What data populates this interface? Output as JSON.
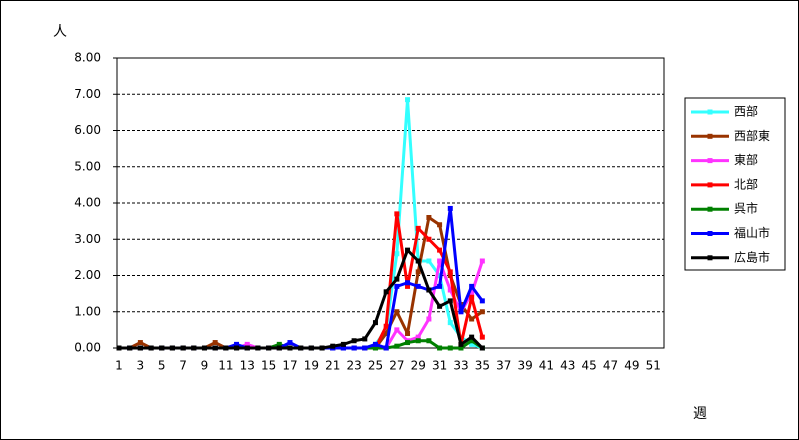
{
  "chart_data": {
    "type": "line",
    "y_unit": "人",
    "x_label": "週",
    "x": [
      1,
      2,
      3,
      4,
      5,
      6,
      7,
      8,
      9,
      10,
      11,
      12,
      13,
      14,
      15,
      16,
      17,
      18,
      19,
      20,
      21,
      22,
      23,
      24,
      25,
      26,
      27,
      28,
      29,
      30,
      31,
      32,
      33,
      34,
      35
    ],
    "xlim": [
      1,
      52
    ],
    "xticks": [
      1,
      3,
      5,
      7,
      9,
      11,
      13,
      15,
      17,
      19,
      21,
      23,
      25,
      27,
      29,
      31,
      33,
      35,
      37,
      39,
      41,
      43,
      45,
      47,
      49,
      51
    ],
    "ylim": [
      0,
      8
    ],
    "yticks": [
      {
        "value": 0,
        "label": "0.00"
      },
      {
        "value": 1,
        "label": "1.00"
      },
      {
        "value": 2,
        "label": "2.00"
      },
      {
        "value": 3,
        "label": "3.00"
      },
      {
        "value": 4,
        "label": "4.00"
      },
      {
        "value": 5,
        "label": "5.00"
      },
      {
        "value": 6,
        "label": "6.00"
      },
      {
        "value": 7,
        "label": "7.00"
      },
      {
        "value": 8,
        "label": "8.00"
      }
    ],
    "grid": true,
    "legend": "right",
    "series": [
      {
        "name": "西部",
        "color": "#33ffff",
        "values": [
          0,
          0,
          0,
          0,
          0,
          0,
          0,
          0,
          0,
          0,
          0,
          0,
          0,
          0,
          0,
          0,
          0,
          0,
          0,
          0,
          0,
          0,
          0,
          0,
          0.1,
          0.5,
          2.6,
          6.85,
          2.4,
          2.4,
          2.0,
          0.7,
          0.3,
          0.1,
          0
        ]
      },
      {
        "name": "西部東",
        "color": "#993300",
        "values": [
          0,
          0,
          0.15,
          0,
          0,
          0,
          0,
          0,
          0,
          0.15,
          0,
          0,
          0,
          0,
          0,
          0,
          0,
          0,
          0,
          0,
          0,
          0,
          0,
          0,
          0,
          0.4,
          1.0,
          0.4,
          2.1,
          3.6,
          3.4,
          2.0,
          1.2,
          0.8,
          1.0
        ]
      },
      {
        "name": "東部",
        "color": "#ff33ff",
        "values": [
          0,
          0,
          0,
          0,
          0,
          0,
          0,
          0,
          0,
          0,
          0,
          0,
          0.1,
          0,
          0,
          0,
          0,
          0,
          0,
          0,
          0,
          0,
          0,
          0,
          0,
          0,
          0.5,
          0.2,
          0.3,
          0.8,
          2.4,
          1.6,
          1.0,
          1.5,
          2.4
        ]
      },
      {
        "name": "北部",
        "color": "#ff0000",
        "values": [
          0,
          0,
          0,
          0,
          0,
          0,
          0,
          0,
          0,
          0,
          0,
          0,
          0,
          0,
          0,
          0,
          0,
          0,
          0,
          0,
          0,
          0,
          0,
          0,
          0,
          0.6,
          3.7,
          1.7,
          3.3,
          3.0,
          2.7,
          2.1,
          0.1,
          1.4,
          0.3
        ]
      },
      {
        "name": "呉市",
        "color": "#008000",
        "values": [
          0,
          0,
          0,
          0,
          0,
          0,
          0,
          0,
          0,
          0,
          0,
          0,
          0,
          0,
          0,
          0.1,
          0,
          0,
          0,
          0,
          0,
          0,
          0,
          0,
          0,
          0,
          0.05,
          0.15,
          0.2,
          0.2,
          0,
          0,
          0,
          0.2,
          0
        ]
      },
      {
        "name": "福山市",
        "color": "#0000ff",
        "values": [
          0,
          0,
          0,
          0,
          0,
          0,
          0,
          0,
          0,
          0,
          0,
          0.1,
          0,
          0,
          0,
          0,
          0.15,
          0,
          0,
          0,
          0,
          0,
          0,
          0,
          0.1,
          0,
          1.7,
          1.8,
          1.7,
          1.6,
          1.7,
          3.85,
          1.0,
          1.7,
          1.3
        ]
      },
      {
        "name": "広島市",
        "color": "#000000",
        "values": [
          0,
          0,
          0,
          0,
          0,
          0,
          0,
          0,
          0,
          0,
          0,
          0,
          0,
          0,
          0,
          0,
          0,
          0,
          0,
          0,
          0.05,
          0.1,
          0.2,
          0.25,
          0.7,
          1.55,
          1.9,
          2.7,
          2.4,
          1.6,
          1.15,
          1.3,
          0.1,
          0.3,
          0
        ]
      }
    ]
  }
}
